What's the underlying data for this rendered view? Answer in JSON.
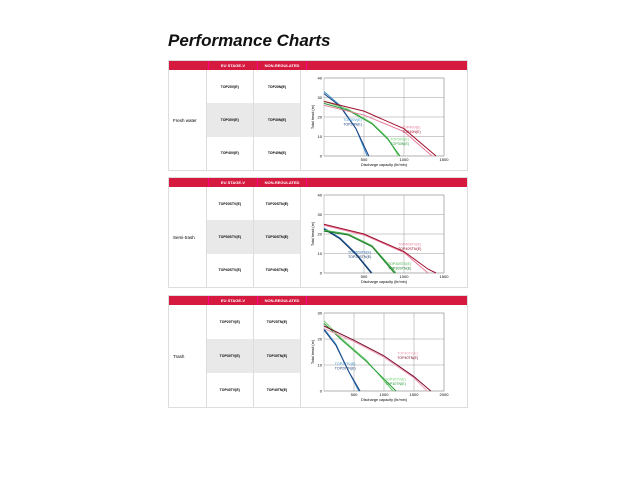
{
  "title": "Performance Charts",
  "headers": [
    "",
    "EU STAGE-V",
    "NON-REGULATED"
  ],
  "sections": [
    {
      "label": "Fresh water",
      "eu": [
        "TOP20V(E)",
        "TOP30V(E)",
        "TOP40V(E)"
      ],
      "nr": [
        "TOP20N(E)",
        "TOP30N(E)",
        "TOP40N(E)"
      ]
    },
    {
      "label": "Semi-trash",
      "eu": [
        "TOP20STV(E)",
        "TOP30STV(E)",
        "TOP40STV(E)"
      ],
      "nr": [
        "TOP20STN(E)",
        "TOP30STN(E)",
        "TOP40STN(E)"
      ]
    },
    {
      "label": "Trash",
      "eu": [
        "TOP20TV(E)",
        "TOP30TV(E)",
        "TOP40TV(E)"
      ],
      "nr": [
        "TOP20TN(E)",
        "TOP30TN(E)",
        "TOP40TN(E)"
      ]
    }
  ],
  "chart_data": [
    {
      "type": "line",
      "xlabel": "Discharge capacity (ltr/min)",
      "ylabel": "Total head (m)",
      "xlim": [
        0,
        1500
      ],
      "ylim": [
        0,
        40
      ],
      "xticks": [
        500,
        1000,
        1500
      ],
      "yticks": [
        0,
        10,
        20,
        30,
        40
      ],
      "grid": true,
      "series": [
        {
          "name": "TOP20V(E)",
          "color": "#3a8fd0",
          "points": [
            [
              0,
              33
            ],
            [
              200,
              26
            ],
            [
              400,
              14
            ],
            [
              540,
              0
            ]
          ]
        },
        {
          "name": "TOP20N(E)",
          "color": "#1a3f7a",
          "points": [
            [
              0,
              32
            ],
            [
              200,
              25.5
            ],
            [
              400,
              14
            ],
            [
              560,
              0
            ]
          ]
        },
        {
          "name": "TOP30V(E)",
          "color": "#6cd06c",
          "points": [
            [
              0,
              28
            ],
            [
              300,
              24
            ],
            [
              600,
              17
            ],
            [
              800,
              9
            ],
            [
              930,
              0
            ]
          ]
        },
        {
          "name": "TOP30N(E)",
          "color": "#2a9a3a",
          "points": [
            [
              0,
              27
            ],
            [
              300,
              23.5
            ],
            [
              600,
              16.5
            ],
            [
              800,
              8.5
            ],
            [
              950,
              0
            ]
          ]
        },
        {
          "name": "TOP40V(E)",
          "color": "#e67a9a",
          "points": [
            [
              0,
              26
            ],
            [
              500,
              21
            ],
            [
              1000,
              12.5
            ],
            [
              1350,
              0
            ]
          ]
        },
        {
          "name": "TOP40N(E)",
          "color": "#a0102f",
          "points": [
            [
              0,
              28
            ],
            [
              500,
              23
            ],
            [
              1000,
              14
            ],
            [
              1400,
              0
            ]
          ]
        }
      ],
      "legend_groups": [
        [
          0,
          1
        ],
        [
          2,
          3
        ],
        [
          4,
          5
        ]
      ]
    },
    {
      "type": "line",
      "xlabel": "Discharge capacity (ltr/min)",
      "ylabel": "Total head (m)",
      "xlim": [
        0,
        1500
      ],
      "ylim": [
        0,
        40
      ],
      "xticks": [
        500,
        1000,
        1500
      ],
      "yticks": [
        0,
        10,
        20,
        30,
        40
      ],
      "grid": true,
      "series": [
        {
          "name": "TOP20STV(E)",
          "color": "#2a6fb0",
          "points": [
            [
              0,
              23
            ],
            [
              200,
              18
            ],
            [
              400,
              10
            ],
            [
              600,
              0
            ]
          ]
        },
        {
          "name": "TOP20STN(E)",
          "color": "#10305a",
          "points": [
            [
              0,
              22.5
            ],
            [
              200,
              17.5
            ],
            [
              400,
              9.5
            ],
            [
              590,
              0
            ]
          ]
        },
        {
          "name": "TOP30STV(E)",
          "color": "#4ab04a",
          "points": [
            [
              0,
              22
            ],
            [
              300,
              20
            ],
            [
              600,
              14
            ],
            [
              900,
              0
            ]
          ]
        },
        {
          "name": "TOP30STN(E)",
          "color": "#1a7a2a",
          "points": [
            [
              0,
              21.5
            ],
            [
              300,
              19.5
            ],
            [
              600,
              13.5
            ],
            [
              880,
              0
            ]
          ]
        },
        {
          "name": "TOP40STV(E)",
          "color": "#e67a9a",
          "points": [
            [
              0,
              24.5
            ],
            [
              500,
              19.5
            ],
            [
              1000,
              10.5
            ],
            [
              1300,
              0
            ]
          ]
        },
        {
          "name": "TOP40STN(E)",
          "color": "#a0102f",
          "points": [
            [
              0,
              25
            ],
            [
              500,
              20
            ],
            [
              1000,
              11
            ],
            [
              1300,
              2
            ],
            [
              1400,
              0
            ]
          ]
        }
      ],
      "legend_groups": [
        [
          0,
          1
        ],
        [
          2,
          3
        ],
        [
          4,
          5
        ]
      ]
    },
    {
      "type": "line",
      "xlabel": "Discharge capacity (ltr/min)",
      "ylabel": "Total head (m)",
      "xlim": [
        0,
        2000
      ],
      "ylim": [
        0,
        30
      ],
      "xticks": [
        500,
        1000,
        1500,
        2000
      ],
      "yticks": [
        0,
        10,
        20,
        30
      ],
      "grid": true,
      "series": [
        {
          "name": "TOP20TV(E)",
          "color": "#3a8fd0",
          "points": [
            [
              0,
              24
            ],
            [
              200,
              18
            ],
            [
              400,
              8
            ],
            [
              580,
              0
            ]
          ]
        },
        {
          "name": "TOP20TN(E)",
          "color": "#1a3f7a",
          "points": [
            [
              0,
              23.5
            ],
            [
              200,
              17.5
            ],
            [
              400,
              8
            ],
            [
              600,
              0
            ]
          ]
        },
        {
          "name": "TOP30TV(E)",
          "color": "#6cd06c",
          "points": [
            [
              0,
              27
            ],
            [
              300,
              20
            ],
            [
              700,
              12
            ],
            [
              1150,
              0
            ]
          ]
        },
        {
          "name": "TOP30TN(E)",
          "color": "#2a9a3a",
          "points": [
            [
              0,
              26
            ],
            [
              300,
              19.5
            ],
            [
              700,
              11.5
            ],
            [
              1200,
              0
            ]
          ]
        },
        {
          "name": "TOP40TV(E)",
          "color": "#f0a0b8",
          "points": [
            [
              0,
              24
            ],
            [
              500,
              19
            ],
            [
              1000,
              13
            ],
            [
              1500,
              5
            ],
            [
              1720,
              0
            ]
          ]
        },
        {
          "name": "TOP40TN(E)",
          "color": "#7a0a2a",
          "points": [
            [
              0,
              25
            ],
            [
              500,
              19.5
            ],
            [
              1000,
              13.5
            ],
            [
              1500,
              5.5
            ],
            [
              1780,
              0
            ]
          ]
        }
      ],
      "legend_groups": [
        [
          0,
          1
        ],
        [
          2,
          3
        ],
        [
          4,
          5
        ]
      ]
    }
  ],
  "accent": "#d6193f"
}
